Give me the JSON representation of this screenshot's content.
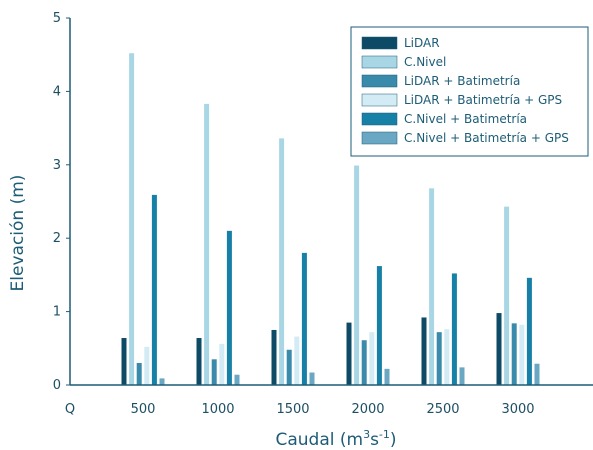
{
  "chart_data": {
    "type": "bar",
    "xlabel_main": "Caudal (m",
    "xlabel_sup1": "3",
    "xlabel_mid": "s",
    "xlabel_sup2": "-1",
    "xlabel_end": ")",
    "ylabel": "Elevación (m)",
    "origin_label": "Q",
    "categories": [
      "500",
      "1000",
      "1500",
      "2000",
      "2500",
      "3000"
    ],
    "ylim": [
      0,
      5
    ],
    "yticks": [
      "0",
      "1",
      "2",
      "3",
      "4",
      "5"
    ],
    "grid": false,
    "legend_position": "top-right",
    "series": [
      {
        "name": "LiDAR",
        "color": "#0d4a66",
        "values": [
          0.64,
          0.64,
          0.75,
          0.85,
          0.92,
          0.98
        ]
      },
      {
        "name": "C.Nivel",
        "color": "#a9d6e5",
        "values": [
          4.52,
          3.83,
          3.36,
          2.99,
          2.68,
          2.43
        ]
      },
      {
        "name": "LiDAR + Batimetría",
        "color": "#3a8aab",
        "values": [
          0.3,
          0.35,
          0.48,
          0.61,
          0.72,
          0.84
        ]
      },
      {
        "name": "LiDAR + Batimetría + GPS",
        "color": "#d3ebf4",
        "values": [
          0.52,
          0.56,
          0.66,
          0.72,
          0.76,
          0.82
        ]
      },
      {
        "name": "C.Nivel + Batimetría",
        "color": "#1680a6",
        "values": [
          2.59,
          2.1,
          1.8,
          1.62,
          1.52,
          1.46
        ]
      },
      {
        "name": "C.Nivel + Batimetría + GPS",
        "color": "#6aa7c2",
        "values": [
          0.09,
          0.14,
          0.17,
          0.22,
          0.24,
          0.29
        ]
      }
    ]
  }
}
